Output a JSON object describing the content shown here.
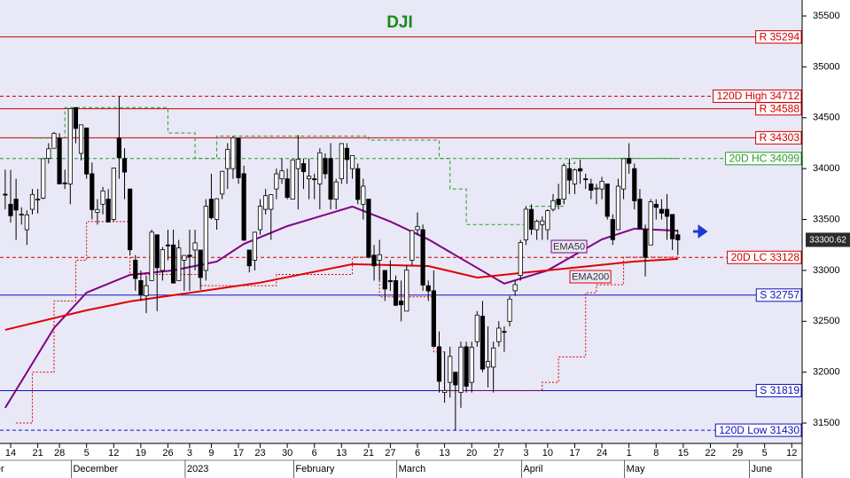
{
  "chart_data": {
    "type": "candlestick",
    "title": "DJI",
    "x": [
      "2022-11-11",
      "2022-11-14",
      "2022-11-15",
      "2022-11-16",
      "2022-11-17",
      "2022-11-18",
      "2022-11-21",
      "2022-11-22",
      "2022-11-23",
      "2022-11-25",
      "2022-11-28",
      "2022-11-29",
      "2022-11-30",
      "2022-12-01",
      "2022-12-02",
      "2022-12-05",
      "2022-12-06",
      "2022-12-07",
      "2022-12-08",
      "2022-12-09",
      "2022-12-12",
      "2022-12-13",
      "2022-12-14",
      "2022-12-15",
      "2022-12-16",
      "2022-12-19",
      "2022-12-20",
      "2022-12-21",
      "2022-12-22",
      "2022-12-23",
      "2022-12-27",
      "2022-12-28",
      "2022-12-29",
      "2022-12-30",
      "2023-01-03",
      "2023-01-04",
      "2023-01-05",
      "2023-01-06",
      "2023-01-09",
      "2023-01-10",
      "2023-01-11",
      "2023-01-12",
      "2023-01-13",
      "2023-01-17",
      "2023-01-18",
      "2023-01-19",
      "2023-01-20",
      "2023-01-23",
      "2023-01-24",
      "2023-01-25",
      "2023-01-26",
      "2023-01-27",
      "2023-01-30",
      "2023-01-31",
      "2023-02-01",
      "2023-02-02",
      "2023-02-03",
      "2023-02-06",
      "2023-02-07",
      "2023-02-08",
      "2023-02-09",
      "2023-02-10",
      "2023-02-13",
      "2023-02-14",
      "2023-02-15",
      "2023-02-16",
      "2023-02-17",
      "2023-02-21",
      "2023-02-22",
      "2023-02-23",
      "2023-02-24",
      "2023-02-27",
      "2023-02-28",
      "2023-03-01",
      "2023-03-02",
      "2023-03-03",
      "2023-03-06",
      "2023-03-07",
      "2023-03-08",
      "2023-03-09",
      "2023-03-10",
      "2023-03-13",
      "2023-03-14",
      "2023-03-15",
      "2023-03-16",
      "2023-03-17",
      "2023-03-20",
      "2023-03-21",
      "2023-03-22",
      "2023-03-23",
      "2023-03-24",
      "2023-03-27",
      "2023-03-28",
      "2023-03-29",
      "2023-03-30",
      "2023-03-31",
      "2023-04-03",
      "2023-04-04",
      "2023-04-05",
      "2023-04-06",
      "2023-04-10",
      "2023-04-11",
      "2023-04-12",
      "2023-04-13",
      "2023-04-14",
      "2023-04-17",
      "2023-04-18",
      "2023-04-19",
      "2023-04-20",
      "2023-04-21",
      "2023-04-24",
      "2023-04-25",
      "2023-04-26",
      "2023-04-27",
      "2023-04-28",
      "2023-05-01",
      "2023-05-02",
      "2023-05-03",
      "2023-05-04",
      "2023-05-05",
      "2023-05-08",
      "2023-05-09",
      "2023-05-10",
      "2023-05-11",
      "2023-05-12"
    ],
    "open": [
      33749,
      33650,
      33700,
      33550,
      33400,
      33600,
      33700,
      33710,
      34100,
      34200,
      34300,
      33860,
      33850,
      34600,
      34150,
      34400,
      33950,
      33570,
      33650,
      33700,
      33500,
      34300,
      34100,
      33800,
      33100,
      32900,
      32750,
      32900,
      33350,
      33000,
      33250,
      33250,
      32900,
      33100,
      33150,
      33200,
      33200,
      33000,
      33700,
      33500,
      33750,
      34000,
      34000,
      34300,
      33950,
      33200,
      33100,
      33400,
      33600,
      33600,
      33800,
      33900,
      33900,
      33700,
      34000,
      34050,
      33900,
      33900,
      33850,
      34100,
      34100,
      33700,
      33900,
      34200,
      34000,
      34000,
      33650,
      33700,
      33150,
      33100,
      33000,
      32900,
      32900,
      32700,
      32600,
      33100,
      33400,
      33400,
      32850,
      32800,
      32250,
      31800,
      31900,
      32000,
      31800,
      32250,
      31900,
      32300,
      32550,
      32050,
      32050,
      32300,
      32400,
      32500,
      32800,
      32950,
      33300,
      33600,
      33400,
      33450,
      33400,
      33600,
      33700,
      33700,
      34000,
      33850,
      34000,
      33900,
      33850,
      33800,
      33800,
      33850,
      33500,
      33400,
      33800,
      34100,
      34000,
      33700,
      33400,
      33250,
      33650,
      33600,
      33600,
      33550,
      33350
    ],
    "high": [
      33990,
      33987,
      33900,
      33620,
      33590,
      33800,
      33800,
      34100,
      34250,
      34360,
      34350,
      33990,
      34590,
      34600,
      34430,
      34400,
      34060,
      33700,
      33820,
      33800,
      34010,
      34712,
      34200,
      33800,
      33150,
      33000,
      32950,
      33400,
      33350,
      33230,
      33400,
      33400,
      33300,
      33150,
      33400,
      33400,
      33200,
      33700,
      33950,
      33710,
      33980,
      34250,
      34320,
      34300,
      34030,
      33200,
      33380,
      33700,
      33800,
      33750,
      34000,
      34100,
      34000,
      34090,
      34330,
      34100,
      34100,
      33950,
      34200,
      34150,
      34250,
      33900,
      34250,
      34250,
      34130,
      34050,
      33900,
      33700,
      33250,
      33300,
      33000,
      33100,
      32950,
      32900,
      33050,
      33400,
      33570,
      33450,
      32900,
      33000,
      32400,
      32200,
      32250,
      32000,
      32300,
      32300,
      32300,
      32600,
      32700,
      32450,
      32300,
      32500,
      32450,
      32750,
      32900,
      33300,
      33630,
      33650,
      33500,
      33530,
      33600,
      33750,
      33850,
      34050,
      34100,
      34000,
      34090,
      33950,
      33900,
      33850,
      33920,
      33850,
      33550,
      33900,
      34100,
      34250,
      34050,
      33800,
      33450,
      33700,
      33700,
      33700,
      33750,
      33550,
      33400
    ],
    "low": [
      33600,
      33470,
      33300,
      33450,
      33250,
      33550,
      33560,
      33700,
      34050,
      34200,
      33850,
      33800,
      33650,
      34250,
      34080,
      33900,
      33500,
      33450,
      33550,
      33470,
      33480,
      33900,
      33700,
      33150,
      32800,
      32700,
      32580,
      32900,
      32600,
      32900,
      33100,
      32870,
      32900,
      32800,
      32800,
      33000,
      32810,
      32900,
      33500,
      33400,
      33700,
      33800,
      33900,
      33850,
      33290,
      32980,
      33000,
      33350,
      33550,
      33300,
      33700,
      33850,
      33700,
      33700,
      33600,
      33800,
      33700,
      33700,
      33600,
      33900,
      33600,
      33600,
      33850,
      33850,
      33900,
      33650,
      33500,
      33120,
      32900,
      32900,
      32700,
      32800,
      32650,
      32500,
      32600,
      33050,
      33350,
      32800,
      32700,
      32250,
      31800,
      31700,
      31750,
      31430,
      31650,
      31800,
      31800,
      32250,
      32000,
      31850,
      31800,
      32250,
      32200,
      32450,
      32750,
      32900,
      33250,
      33350,
      33300,
      33300,
      33300,
      33580,
      33600,
      33650,
      33750,
      33750,
      33850,
      33800,
      33700,
      33650,
      33700,
      33500,
      33250,
      33400,
      33700,
      33950,
      33600,
      33400,
      32940,
      33250,
      33500,
      33500,
      33300,
      33200,
      33150
    ],
    "close": [
      33748,
      33537,
      33593,
      33553,
      33546,
      33746,
      33700,
      34098,
      34195,
      34347,
      33850,
      33853,
      34590,
      34395,
      34430,
      33947,
      33597,
      33598,
      33781,
      33476,
      34005,
      34108,
      33966,
      33203,
      32920,
      32757,
      32850,
      33376,
      33027,
      33204,
      33241,
      32876,
      33221,
      33147,
      33136,
      33270,
      32930,
      33631,
      33517,
      33704,
      33973,
      34190,
      34303,
      33910,
      33297,
      33045,
      33375,
      33630,
      33734,
      33744,
      33949,
      33978,
      33717,
      34086,
      34093,
      33970,
      33926,
      33891,
      34156,
      33949,
      33699,
      33869,
      34246,
      34089,
      34128,
      33697,
      33827,
      33130,
      33045,
      33154,
      32817,
      32889,
      32657,
      32662,
      33004,
      33391,
      33432,
      32856,
      32798,
      32254,
      31910,
      31820,
      32155,
      31875,
      32247,
      31862,
      32245,
      32561,
      32030,
      32106,
      32238,
      32433,
      32395,
      32718,
      32860,
      33274,
      33601,
      33403,
      33483,
      33486,
      33587,
      33685,
      33647,
      34030,
      33887,
      33988,
      33977,
      33897,
      33787,
      33809,
      33876,
      33531,
      33302,
      33827,
      34098,
      34052,
      33684,
      33414,
      33128,
      33675,
      33619,
      33562,
      33531,
      33310,
      33300.62
    ],
    "up_color": "#ffffff",
    "down_color": "#000000",
    "last_price": 33300.62,
    "overlays": [
      {
        "name": "EMA50",
        "color": "#800080",
        "style": "solid",
        "x": [
          "2022-11-11",
          "2022-11-25",
          "2022-12-05",
          "2022-12-15",
          "2022-12-28",
          "2023-01-10",
          "2023-01-18",
          "2023-01-30",
          "2023-02-15",
          "2023-02-27",
          "2023-03-08",
          "2023-03-17",
          "2023-03-28",
          "2023-04-10",
          "2023-04-24",
          "2023-05-02",
          "2023-05-12"
        ],
        "values": [
          31650,
          32434,
          32782,
          32956,
          33000,
          33087,
          33260,
          33435,
          33627,
          33480,
          33305,
          33087,
          32870,
          33000,
          33305,
          33410,
          33390
        ]
      },
      {
        "name": "EMA200",
        "color": "#e00000",
        "style": "solid",
        "x": [
          "2022-11-11",
          "2022-12-05",
          "2022-12-15",
          "2022-12-28",
          "2023-01-23",
          "2023-02-15",
          "2023-03-08",
          "2023-03-21",
          "2023-03-31",
          "2023-04-13",
          "2023-05-02",
          "2023-05-12"
        ],
        "values": [
          32416,
          32608,
          32695,
          32756,
          32880,
          33061,
          33043,
          32930,
          32974,
          33017,
          33087,
          33113
        ]
      },
      {
        "color": "#2a9a2a",
        "style": "dashed",
        "step": true,
        "x": [
          "2022-11-18",
          "2022-11-29",
          "2022-12-27",
          "2023-01-04",
          "2023-01-10",
          "2023-02-21",
          "2023-03-10",
          "2023-03-14",
          "2023-03-17",
          "2023-04-03",
          "2023-04-13",
          "2023-04-17",
          "2023-05-12"
        ],
        "values": [
          34300,
          34600,
          34350,
          34100,
          34320,
          34280,
          34100,
          33800,
          33450,
          33630,
          34050,
          34100,
          34100
        ]
      },
      {
        "color": "#e00000",
        "style": "dotted",
        "step": true,
        "x": [
          "2022-11-15",
          "2022-11-18",
          "2022-11-25",
          "2022-12-01",
          "2022-12-05",
          "2022-12-15",
          "2023-01-05",
          "2023-01-26",
          "2023-02-15",
          "2023-02-23",
          "2023-03-09",
          "2023-03-13",
          "2023-04-06",
          "2023-04-12",
          "2023-04-19",
          "2023-04-21",
          "2023-04-28",
          "2023-05-12"
        ],
        "values": [
          31500,
          32000,
          32700,
          33100,
          33480,
          32960,
          32850,
          32960,
          33130,
          32740,
          32200,
          31820,
          31900,
          32150,
          32780,
          32860,
          33130,
          33130
        ]
      }
    ],
    "levels": [
      {
        "value": 35294,
        "label": "R 35294",
        "color": "#d00000",
        "style": "solid"
      },
      {
        "value": 34712,
        "label": "120D High 34712",
        "color": "#d00000",
        "style": "dashed"
      },
      {
        "value": 34588,
        "label": "R 34588",
        "color": "#d00000",
        "style": "solid"
      },
      {
        "value": 34303,
        "label": "R 34303",
        "color": "#d00000",
        "style": "solid"
      },
      {
        "value": 34099,
        "label": "20D HC 34099",
        "color": "#2a9a2a",
        "style": "dashed"
      },
      {
        "value": 33128,
        "label": "20D LC 33128",
        "color": "#d00000",
        "style": "dashed"
      },
      {
        "value": 32757,
        "label": "S 32757",
        "color": "#1010c0",
        "style": "solid"
      },
      {
        "value": 31819,
        "label": "S 31819",
        "color": "#1010c0",
        "style": "solid"
      },
      {
        "value": 31430,
        "label": "120D Low 31430",
        "color": "#1010c0",
        "style": "dashed"
      }
    ],
    "ylim": [
      31300,
      35657
    ],
    "yticks": [
      31500,
      32000,
      32500,
      33000,
      33500,
      34000,
      34500,
      35000,
      35500
    ],
    "xticks": [
      {
        "value": "2022-11-14",
        "label": "14"
      },
      {
        "value": "2022-11-21",
        "label": "21"
      },
      {
        "value": "2022-11-28",
        "label": "28"
      },
      {
        "value": "2022-12-05",
        "label": "5"
      },
      {
        "value": "2022-12-12",
        "label": "12"
      },
      {
        "value": "2022-12-19",
        "label": "19"
      },
      {
        "value": "2022-12-26",
        "label": "26"
      },
      {
        "value": "2023-01-03",
        "label": "3"
      },
      {
        "value": "2023-01-09",
        "label": "9"
      },
      {
        "value": "2023-01-17",
        "label": "17"
      },
      {
        "value": "2023-01-23",
        "label": "23"
      },
      {
        "value": "2023-01-30",
        "label": "30"
      },
      {
        "value": "2023-02-06",
        "label": "6"
      },
      {
        "value": "2023-02-13",
        "label": "13"
      },
      {
        "value": "2023-02-21",
        "label": "21"
      },
      {
        "value": "2023-02-27",
        "label": "27"
      },
      {
        "value": "2023-03-06",
        "label": "6"
      },
      {
        "value": "2023-03-13",
        "label": "13"
      },
      {
        "value": "2023-03-20",
        "label": "20"
      },
      {
        "value": "2023-03-27",
        "label": "27"
      },
      {
        "value": "2023-04-03",
        "label": "3"
      },
      {
        "value": "2023-04-10",
        "label": "10"
      },
      {
        "value": "2023-04-17",
        "label": "17"
      },
      {
        "value": "2023-04-24",
        "label": "24"
      },
      {
        "value": "2023-05-01",
        "label": "1"
      },
      {
        "value": "2023-05-08",
        "label": "8"
      },
      {
        "value": "2023-05-15",
        "label": "15"
      },
      {
        "value": "2023-05-22",
        "label": "22"
      },
      {
        "value": "2023-05-29",
        "label": "29"
      },
      {
        "value": "2023-06-05",
        "label": "5"
      },
      {
        "value": "2023-06-12",
        "label": "12"
      }
    ],
    "month_labels": [
      {
        "value": "2022-11-01",
        "label": "November"
      },
      {
        "value": "2022-12-01",
        "label": "December"
      },
      {
        "value": "2023-01-01",
        "label": "2023"
      },
      {
        "value": "2023-02-01",
        "label": "February"
      },
      {
        "value": "2023-03-01",
        "label": "March"
      },
      {
        "value": "2023-04-01",
        "label": "April"
      },
      {
        "value": "2023-05-01",
        "label": "May"
      },
      {
        "value": "2023-06-01",
        "label": "June"
      }
    ],
    "grid": false
  }
}
